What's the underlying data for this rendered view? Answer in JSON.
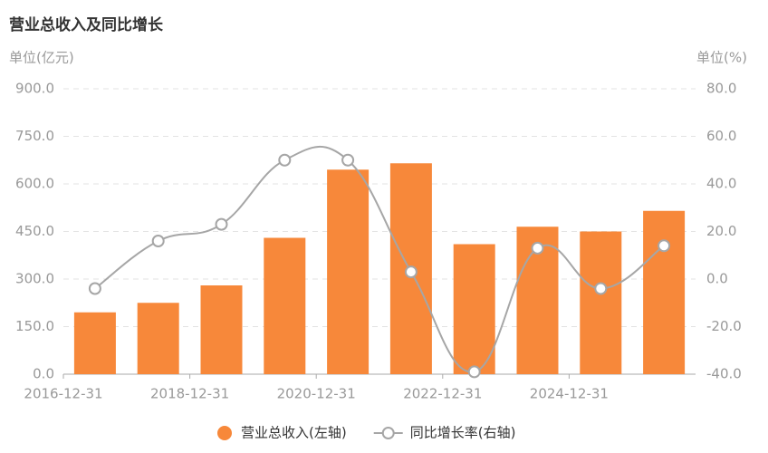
{
  "chart_data": {
    "type": "bar-line",
    "title": "营业总收入及同比增长",
    "y_unit": "单位(亿元)",
    "y2_unit": "单位(%)",
    "categories": [
      "2016-12-31",
      null,
      "2018-12-31",
      null,
      "2020-12-31",
      null,
      "2022-12-31",
      null,
      "2024-12-31",
      null
    ],
    "series": [
      {
        "name": "营业总收入(左轴)",
        "type": "bar",
        "color": "#f7883a",
        "values": [
          195,
          225,
          280,
          430,
          645,
          665,
          410,
          465,
          450,
          515
        ]
      },
      {
        "name": "同比增长率(右轴)",
        "type": "line",
        "axis": "y2",
        "color": "#a6a6a6",
        "values": [
          -4,
          16,
          23,
          50,
          50,
          3,
          -39,
          13,
          -4,
          14
        ]
      }
    ],
    "ylim": [
      0,
      900
    ],
    "yticks": [
      {
        "value": 0,
        "label": "0.0"
      },
      {
        "value": 150,
        "label": "150.0"
      },
      {
        "value": 300,
        "label": "300.0"
      },
      {
        "value": 450,
        "label": "450.0"
      },
      {
        "value": 600,
        "label": "600.0"
      },
      {
        "value": 750,
        "label": "750.0"
      },
      {
        "value": 900,
        "label": "900.0"
      }
    ],
    "y2lim": [
      -40,
      80
    ],
    "y2ticks": [
      {
        "value": -40,
        "label": "-40.0"
      },
      {
        "value": -20,
        "label": "-20.0"
      },
      {
        "value": 0,
        "label": "0.0"
      },
      {
        "value": 20,
        "label": "20.0"
      },
      {
        "value": 40,
        "label": "40.0"
      },
      {
        "value": 60,
        "label": "60.0"
      },
      {
        "value": 80,
        "label": "80.0"
      }
    ],
    "grid": true,
    "legend": "bottom"
  }
}
